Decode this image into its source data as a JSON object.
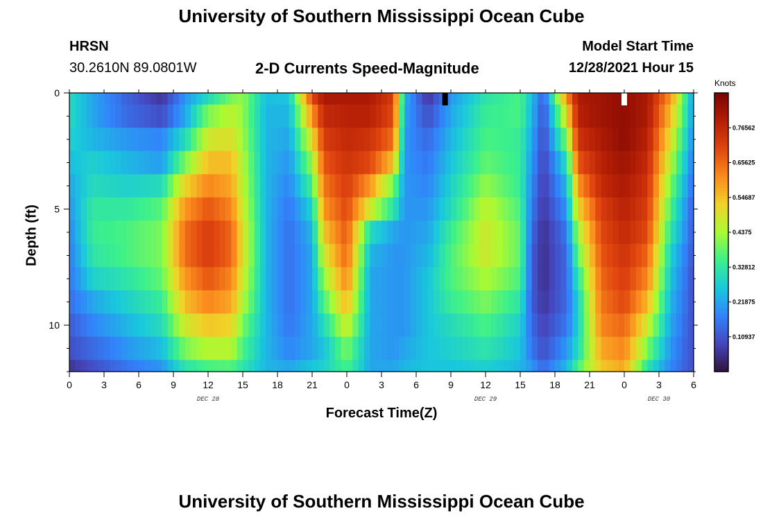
{
  "header": {
    "title": "University of Southern Mississippi Ocean Cube",
    "station_code": "HRSN",
    "station_coords": "30.2610N  89.0801W",
    "subtitle": "2-D Currents Speed-Magnitude",
    "model_start_label": "Model Start Time",
    "model_start_value": "12/28/2021 Hour 15"
  },
  "footer": {
    "title_repeat": "University of Southern Mississippi Ocean Cube"
  },
  "chart_data": {
    "type": "heatmap",
    "title": "2-D Currents Speed-Magnitude",
    "xlabel": "Forecast Time(Z)",
    "ylabel": "Depth (ft)",
    "x_range_hours": [
      0,
      54
    ],
    "x_tick_labels": [
      "0",
      "3",
      "6",
      "9",
      "12",
      "15",
      "18",
      "21",
      "0",
      "3",
      "6",
      "9",
      "12",
      "15",
      "18",
      "21",
      "0",
      "3",
      "6"
    ],
    "day_labels": [
      {
        "text": "DEC 28",
        "hour": 12
      },
      {
        "text": "DEC 29",
        "hour": 36
      },
      {
        "text": "DEC 30",
        "hour": 51
      }
    ],
    "y_range_ft": [
      0,
      12
    ],
    "y_tick_labels": [
      "0",
      "5",
      "10"
    ],
    "y_tick_values": [
      0,
      5,
      10
    ],
    "colorbar": {
      "title": "Knots",
      "range": [
        0,
        0.875
      ],
      "tick_labels": [
        "0.10937",
        "0.21875",
        "0.32812",
        "0.4375",
        "0.54687",
        "0.65625",
        "0.76562"
      ],
      "tick_values": [
        0.109375,
        0.21875,
        0.328125,
        0.4375,
        0.546875,
        0.65625,
        0.765625
      ]
    },
    "depth_rows_ft": [
      0,
      1,
      2,
      3,
      4,
      5,
      6,
      7,
      8,
      9,
      10,
      11,
      12
    ],
    "speed_keyframes": [
      {
        "hour": 0,
        "speeds": [
          0.3,
          0.3,
          0.28,
          0.25,
          0.22,
          0.2,
          0.18,
          0.17,
          0.16,
          0.15,
          0.12,
          0.1,
          0.06
        ]
      },
      {
        "hour": 2,
        "speeds": [
          0.22,
          0.22,
          0.24,
          0.28,
          0.3,
          0.33,
          0.34,
          0.32,
          0.28,
          0.22,
          0.18,
          0.14,
          0.1
        ]
      },
      {
        "hour": 5,
        "speeds": [
          0.13,
          0.14,
          0.2,
          0.24,
          0.28,
          0.33,
          0.36,
          0.36,
          0.32,
          0.28,
          0.24,
          0.2,
          0.16
        ]
      },
      {
        "hour": 8,
        "speeds": [
          0.06,
          0.1,
          0.18,
          0.21,
          0.3,
          0.37,
          0.4,
          0.4,
          0.38,
          0.34,
          0.3,
          0.25,
          0.2
        ]
      },
      {
        "hour": 10,
        "speeds": [
          0.2,
          0.22,
          0.3,
          0.4,
          0.52,
          0.6,
          0.65,
          0.65,
          0.6,
          0.55,
          0.48,
          0.4,
          0.32
        ]
      },
      {
        "hour": 12,
        "speeds": [
          0.3,
          0.4,
          0.48,
          0.55,
          0.62,
          0.68,
          0.72,
          0.72,
          0.68,
          0.62,
          0.54,
          0.45,
          0.36
        ]
      },
      {
        "hour": 14,
        "speeds": [
          0.4,
          0.46,
          0.5,
          0.55,
          0.58,
          0.62,
          0.66,
          0.66,
          0.62,
          0.58,
          0.52,
          0.45,
          0.37
        ]
      },
      {
        "hour": 15,
        "speeds": [
          0.42,
          0.42,
          0.43,
          0.45,
          0.46,
          0.48,
          0.5,
          0.5,
          0.48,
          0.45,
          0.4,
          0.36,
          0.32
        ]
      },
      {
        "hour": 17,
        "speeds": [
          0.25,
          0.24,
          0.24,
          0.24,
          0.24,
          0.24,
          0.24,
          0.24,
          0.24,
          0.24,
          0.24,
          0.24,
          0.24
        ]
      },
      {
        "hour": 19,
        "speeds": [
          0.26,
          0.24,
          0.22,
          0.2,
          0.18,
          0.16,
          0.15,
          0.15,
          0.15,
          0.15,
          0.16,
          0.18,
          0.22
        ]
      },
      {
        "hour": 21,
        "speeds": [
          0.7,
          0.6,
          0.5,
          0.42,
          0.35,
          0.28,
          0.24,
          0.22,
          0.22,
          0.22,
          0.22,
          0.22,
          0.26
        ]
      },
      {
        "hour": 22,
        "speeds": [
          0.8,
          0.76,
          0.72,
          0.68,
          0.64,
          0.6,
          0.54,
          0.48,
          0.42,
          0.36,
          0.3,
          0.26,
          0.28
        ]
      },
      {
        "hour": 24,
        "speeds": [
          0.8,
          0.78,
          0.76,
          0.74,
          0.72,
          0.7,
          0.68,
          0.66,
          0.62,
          0.56,
          0.48,
          0.4,
          0.36
        ]
      },
      {
        "hour": 26,
        "speeds": [
          0.8,
          0.78,
          0.74,
          0.7,
          0.6,
          0.48,
          0.3,
          0.24,
          0.22,
          0.22,
          0.22,
          0.22,
          0.22
        ]
      },
      {
        "hour": 28,
        "speeds": [
          0.72,
          0.7,
          0.65,
          0.55,
          0.4,
          0.32,
          0.22,
          0.2,
          0.2,
          0.2,
          0.2,
          0.2,
          0.22
        ]
      },
      {
        "hour": 29,
        "speeds": [
          0.24,
          0.22,
          0.2,
          0.2,
          0.2,
          0.2,
          0.2,
          0.2,
          0.2,
          0.2,
          0.2,
          0.22,
          0.24
        ]
      },
      {
        "hour": 31,
        "speeds": [
          0.06,
          0.1,
          0.14,
          0.16,
          0.18,
          0.2,
          0.22,
          0.24,
          0.26,
          0.26,
          0.26,
          0.26,
          0.26
        ]
      },
      {
        "hour": 33,
        "speeds": [
          0.2,
          0.22,
          0.24,
          0.26,
          0.28,
          0.3,
          0.34,
          0.36,
          0.36,
          0.34,
          0.3,
          0.28,
          0.26
        ]
      },
      {
        "hour": 36,
        "speeds": [
          0.32,
          0.34,
          0.36,
          0.38,
          0.42,
          0.46,
          0.48,
          0.48,
          0.44,
          0.4,
          0.36,
          0.32,
          0.28
        ]
      },
      {
        "hour": 39,
        "speeds": [
          0.36,
          0.36,
          0.34,
          0.34,
          0.34,
          0.36,
          0.38,
          0.38,
          0.36,
          0.32,
          0.28,
          0.26,
          0.24
        ]
      },
      {
        "hour": 40,
        "speeds": [
          0.25,
          0.24,
          0.22,
          0.2,
          0.18,
          0.16,
          0.14,
          0.12,
          0.12,
          0.12,
          0.14,
          0.16,
          0.2
        ]
      },
      {
        "hour": 41,
        "speeds": [
          0.12,
          0.1,
          0.09,
          0.08,
          0.07,
          0.06,
          0.05,
          0.05,
          0.05,
          0.06,
          0.08,
          0.1,
          0.14
        ]
      },
      {
        "hour": 43,
        "speeds": [
          0.6,
          0.5,
          0.4,
          0.3,
          0.24,
          0.2,
          0.16,
          0.14,
          0.14,
          0.14,
          0.16,
          0.2,
          0.24
        ]
      },
      {
        "hour": 44,
        "speeds": [
          0.8,
          0.78,
          0.74,
          0.68,
          0.6,
          0.52,
          0.44,
          0.38,
          0.32,
          0.28,
          0.28,
          0.3,
          0.36
        ]
      },
      {
        "hour": 46,
        "speeds": [
          0.82,
          0.82,
          0.8,
          0.78,
          0.76,
          0.72,
          0.7,
          0.68,
          0.66,
          0.64,
          0.62,
          0.58,
          0.54
        ]
      },
      {
        "hour": 48,
        "speeds": [
          0.84,
          0.84,
          0.84,
          0.82,
          0.8,
          0.78,
          0.76,
          0.74,
          0.72,
          0.7,
          0.66,
          0.62,
          0.58
        ]
      },
      {
        "hour": 50,
        "speeds": [
          0.8,
          0.8,
          0.78,
          0.76,
          0.74,
          0.72,
          0.7,
          0.66,
          0.62,
          0.56,
          0.48,
          0.4,
          0.32
        ]
      },
      {
        "hour": 52,
        "speeds": [
          0.6,
          0.55,
          0.5,
          0.45,
          0.4,
          0.36,
          0.32,
          0.28,
          0.26,
          0.24,
          0.22,
          0.2,
          0.18
        ]
      },
      {
        "hour": 54,
        "speeds": [
          0.2,
          0.2,
          0.18,
          0.16,
          0.14,
          0.12,
          0.12,
          0.11,
          0.1,
          0.1,
          0.1,
          0.1,
          0.1
        ]
      }
    ],
    "markers": [
      {
        "hour": 32.5,
        "depth_ft": 0,
        "color": "#000000"
      },
      {
        "hour": 48,
        "depth_ft": 0,
        "color": "#ffffff"
      }
    ]
  }
}
